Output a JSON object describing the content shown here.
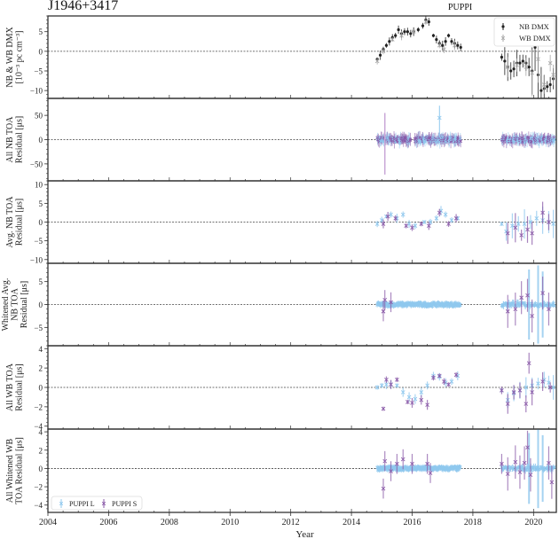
{
  "figure": {
    "title": "J1946+3417",
    "subtitle": "PUPPI",
    "xlabel": "Year",
    "x_ticks": [
      "2004",
      "2006",
      "2008",
      "2010",
      "2012",
      "2014",
      "2016",
      "2018",
      "2020"
    ]
  },
  "legends": {
    "dmx": [
      {
        "label": "NB DMX",
        "color": "#222222",
        "marker": "dot"
      },
      {
        "label": "WB DMX",
        "color": "#a8a8a8",
        "marker": "x"
      }
    ],
    "receivers": [
      {
        "label": "PUPPI L",
        "color": "#8fc8ee",
        "marker": "x"
      },
      {
        "label": "PUPPI S",
        "color": "#8a5aa8",
        "marker": "x"
      }
    ]
  },
  "colors": {
    "puppi_l": "#8fc8ee",
    "puppi_s": "#8a5aa8",
    "nb_dmx": "#222222",
    "wb_dmx": "#a8a8a8",
    "axis": "#333333"
  },
  "chart_data": [
    {
      "type": "scatter",
      "title": "J1946+3417",
      "panel": 1,
      "ylabel": "NB & WB DMX [10^-3 pc cm^-3]",
      "ylim": [
        -12,
        9
      ],
      "y_ticks": [
        5,
        0,
        -5,
        -10
      ],
      "xlim": [
        2004.0,
        2020.75
      ],
      "legend_position": "upper right",
      "series": [
        {
          "name": "NB DMX",
          "x": [
            2014.85,
            2014.95,
            2015.05,
            2015.15,
            2015.25,
            2015.35,
            2015.45,
            2015.55,
            2015.65,
            2015.75,
            2015.85,
            2015.95,
            2016.05,
            2016.2,
            2016.35,
            2016.45,
            2016.55,
            2016.7,
            2016.8,
            2016.9,
            2017.0,
            2017.1,
            2017.2,
            2017.3,
            2017.4,
            2017.5,
            2017.6,
            2018.95,
            2019.05,
            2019.15,
            2019.25,
            2019.35,
            2019.45,
            2019.55,
            2019.65,
            2019.75,
            2019.85,
            2019.95,
            2020.05,
            2020.15,
            2020.25,
            2020.35,
            2020.45,
            2020.55,
            2020.65
          ],
          "y": [
            -2,
            -1,
            0.5,
            1.5,
            2.5,
            3.5,
            4,
            5.5,
            4.5,
            5,
            5,
            4.5,
            5,
            5.5,
            6.5,
            8,
            7.5,
            4,
            3,
            2,
            1.5,
            2.5,
            4,
            2.5,
            2,
            1.5,
            1,
            -1.5,
            -2.5,
            -4,
            -5,
            -4.5,
            -3,
            -3,
            -2.5,
            -3,
            -4,
            -5,
            1,
            -6,
            -10,
            -9.5,
            -9,
            -8.5,
            -7
          ]
        },
        {
          "name": "WB DMX",
          "x": [
            2014.85,
            2015.05,
            2015.35,
            2015.65,
            2016.05,
            2016.45,
            2016.9,
            2017.05,
            2017.4,
            2019.15,
            2019.45,
            2019.75,
            2019.95,
            2020.15,
            2020.35,
            2020.55,
            2020.65
          ],
          "y": [
            -2.5,
            0,
            3,
            4,
            5,
            7.5,
            1.5,
            0.5,
            1.5,
            -4,
            -3.5,
            -4,
            -5.5,
            -2,
            -8.5,
            -3,
            -6
          ]
        }
      ]
    },
    {
      "type": "scatter",
      "panel": 2,
      "ylabel": "All NB TOA Residual [μs]",
      "ylim": [
        -85,
        85
      ],
      "y_ticks": [
        50,
        0,
        -50
      ],
      "series": [
        {
          "name": "PUPPI L",
          "note": "dense band within about ±15 μs, 2014.85–2017.6 and 2018.95–2020.7; outlier near +65 at 2016.9"
        },
        {
          "name": "PUPPI S",
          "note": "dense band within about ±10 μs over same spans; long error bar spanning -70 to +55 near 2015.1"
        }
      ]
    },
    {
      "type": "scatter",
      "panel": 3,
      "ylabel": "Avg. NB TOA Residual [μs]",
      "ylim": [
        -11,
        11
      ],
      "y_ticks": [
        10,
        5,
        0,
        -5,
        -10
      ],
      "series": [
        {
          "name": "PUPPI L",
          "x": [
            2014.85,
            2015.0,
            2015.15,
            2015.3,
            2015.5,
            2015.7,
            2015.9,
            2016.1,
            2016.4,
            2016.6,
            2016.8,
            2016.95,
            2017.1,
            2017.3,
            2017.5,
            2018.95,
            2019.1,
            2019.3,
            2019.5,
            2019.7,
            2019.9,
            2020.1,
            2020.3,
            2020.5,
            2020.65
          ],
          "y": [
            -0.5,
            0.5,
            1.5,
            2,
            1,
            2,
            -0.5,
            -1,
            0,
            0,
            1,
            3,
            2,
            0.5,
            1,
            -0.5,
            -2.5,
            -1,
            -0.5,
            -0.5,
            0,
            1,
            0.5,
            0,
            -0.5
          ]
        },
        {
          "name": "PUPPI S",
          "x": [
            2015.05,
            2015.2,
            2015.45,
            2015.8,
            2016.0,
            2016.3,
            2016.55,
            2016.9,
            2017.2,
            2017.45,
            2019.15,
            2019.4,
            2019.6,
            2019.8,
            2019.95,
            2020.3,
            2020.5
          ],
          "y": [
            -0.5,
            1.5,
            1,
            -1,
            -1.5,
            -0.5,
            -1,
            2.5,
            -0.5,
            1,
            -3,
            -1.5,
            -3.5,
            -2,
            -3,
            2.5,
            0
          ]
        }
      ]
    },
    {
      "type": "scatter",
      "panel": 4,
      "ylabel": "Whitened Avg. NB TOA Residual [μs]",
      "ylim": [
        -9,
        9
      ],
      "y_ticks": [
        5,
        0,
        -5
      ],
      "series": [
        {
          "name": "PUPPI L",
          "note": "points near 0 with small scatter (±0.5) 2014.85–2017.6; larger error bars 2018.95–2020.7 up to ±8"
        },
        {
          "name": "PUPPI S",
          "x": [
            2015.05,
            2015.1,
            2015.3,
            2019.15,
            2019.4,
            2019.6,
            2019.8,
            2019.95,
            2020.3,
            2020.5
          ],
          "y": [
            -1.5,
            1,
            0.5,
            -1.5,
            -1,
            1.5,
            2,
            -2.5,
            2.5,
            -1
          ]
        }
      ]
    },
    {
      "type": "scatter",
      "panel": 5,
      "ylabel": "All WB TOA Residual [μs]",
      "ylim": [
        -4.3,
        4.3
      ],
      "y_ticks": [
        4,
        2,
        0,
        -2,
        -4
      ],
      "series": [
        {
          "name": "PUPPI L",
          "x": [
            2014.85,
            2015.0,
            2015.15,
            2015.3,
            2015.5,
            2015.7,
            2015.9,
            2016.1,
            2016.3,
            2016.5,
            2016.7,
            2016.9,
            2017.1,
            2017.3,
            2017.5,
            2018.95,
            2019.15,
            2019.35,
            2019.55,
            2019.75,
            2019.95,
            2020.15,
            2020.35,
            2020.5,
            2020.65
          ],
          "y": [
            0,
            0.2,
            0.3,
            0.3,
            0.2,
            -0.5,
            -1,
            -1.2,
            -0.5,
            0.2,
            1.2,
            1.1,
            0.5,
            0.6,
            1.2,
            -0.3,
            -1.3,
            -0.6,
            -0.3,
            0,
            0.2,
            0.4,
            0.8,
            0.5,
            0
          ]
        },
        {
          "name": "PUPPI S",
          "x": [
            2015.05,
            2015.15,
            2015.3,
            2015.5,
            2015.85,
            2016.0,
            2016.3,
            2016.5,
            2016.7,
            2016.9,
            2017.05,
            2017.2,
            2017.45,
            2018.95,
            2019.15,
            2019.35,
            2019.55,
            2019.75,
            2019.85,
            2019.95,
            2020.3,
            2020.55
          ],
          "y": [
            -2.2,
            0.8,
            0.3,
            0.8,
            -1.5,
            -1.6,
            -1.3,
            -1.8,
            1,
            1.2,
            0.6,
            0.3,
            1.3,
            -0.3,
            -1.7,
            -0.5,
            -0.3,
            -1.7,
            2.5,
            -0.5,
            0.6,
            0
          ]
        }
      ]
    },
    {
      "type": "scatter",
      "panel": 6,
      "ylabel": "All Whitened WB TOA Residual [μs]",
      "ylim": [
        -4.8,
        4.3
      ],
      "y_ticks": [
        4,
        2,
        0,
        -2,
        -4
      ],
      "legend_position": "lower left",
      "series": [
        {
          "name": "PUPPI L",
          "note": "points near 0 with small scatter; large error bars 2019.8–2020.5"
        },
        {
          "name": "PUPPI S",
          "x": [
            2015.05,
            2015.1,
            2015.3,
            2015.5,
            2015.7,
            2016.0,
            2016.5,
            2016.6,
            2018.95,
            2019.15,
            2019.4,
            2019.55,
            2019.7,
            2019.8,
            2019.9,
            2020.5,
            2020.6
          ],
          "y": [
            -2.2,
            0.8,
            -0.3,
            0.5,
            1.0,
            0.5,
            0.5,
            -0.5,
            0.5,
            -0.6,
            0.7,
            -0.4,
            0.6,
            2.3,
            -0.7,
            0.6,
            -1.5
          ]
        }
      ]
    }
  ]
}
